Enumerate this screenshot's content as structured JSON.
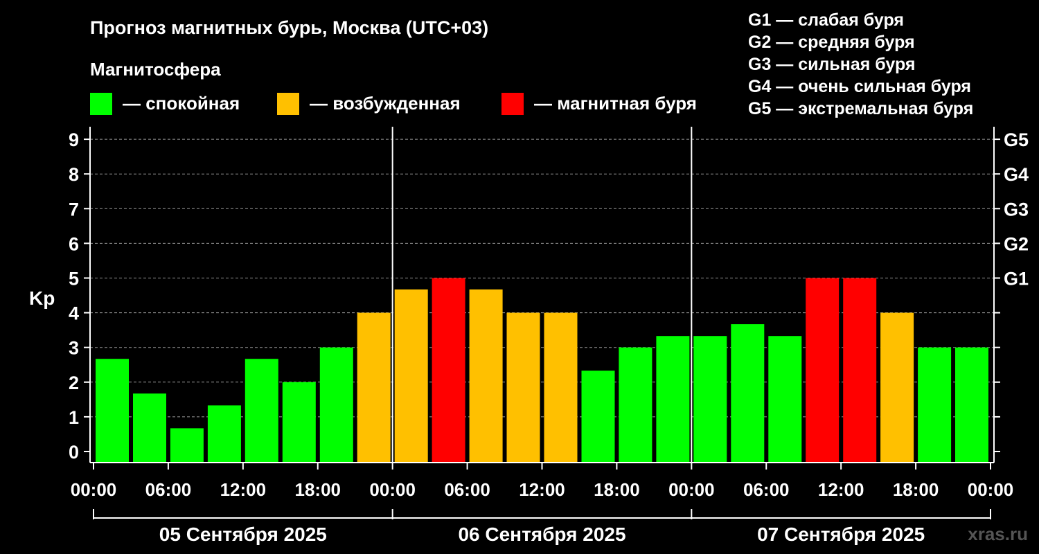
{
  "title": "Прогноз магнитных бурь, Москва (UTC+03)",
  "legend": {
    "heading": "Магнитосфера",
    "items": [
      {
        "label": "— спокойная",
        "color": "#00ff00"
      },
      {
        "label": "— возбужденная",
        "color": "#ffc000"
      },
      {
        "label": "— магнитная буря",
        "color": "#ff0000"
      }
    ]
  },
  "g_scale": [
    "G1 — слабая буря",
    "G2 — средняя буря",
    "G3 — сильная буря",
    "G4 — очень сильная буря",
    "G5 — экстремальная буря"
  ],
  "watermark": "xras.ru",
  "chart_data": {
    "type": "bar",
    "ylabel": "Kp",
    "ylim": [
      0,
      9
    ],
    "yticks": [
      "0",
      "1",
      "2",
      "3",
      "4",
      "5",
      "6",
      "7",
      "8",
      "9"
    ],
    "right_ticks": [
      "G1",
      "G2",
      "G3",
      "G4",
      "G5"
    ],
    "right_tick_values": [
      5,
      6,
      7,
      8,
      9
    ],
    "xtick_labels": [
      "00:00",
      "06:00",
      "12:00",
      "18:00",
      "00:00",
      "06:00",
      "12:00",
      "18:00",
      "00:00",
      "06:00",
      "12:00",
      "18:00",
      "00:00"
    ],
    "days": [
      "05 Сентября 2025",
      "06 Сентября 2025",
      "07 Сентября 2025"
    ],
    "grid": true,
    "series": [
      {
        "values": [
          2.67,
          1.67,
          0.67,
          1.33,
          2.67,
          2.0,
          3.0,
          4.0,
          4.67,
          5.0,
          4.67,
          4.0,
          4.0,
          2.33,
          3.0,
          3.33,
          3.33,
          3.67,
          3.33,
          5.0,
          5.0,
          4.0,
          3.0,
          3.0
        ]
      }
    ],
    "thresholds": {
      "quiet_below": 4,
      "storm_from": 5
    },
    "colors": {
      "quiet": "#00ff00",
      "active": "#ffc000",
      "storm": "#ff0000"
    }
  }
}
